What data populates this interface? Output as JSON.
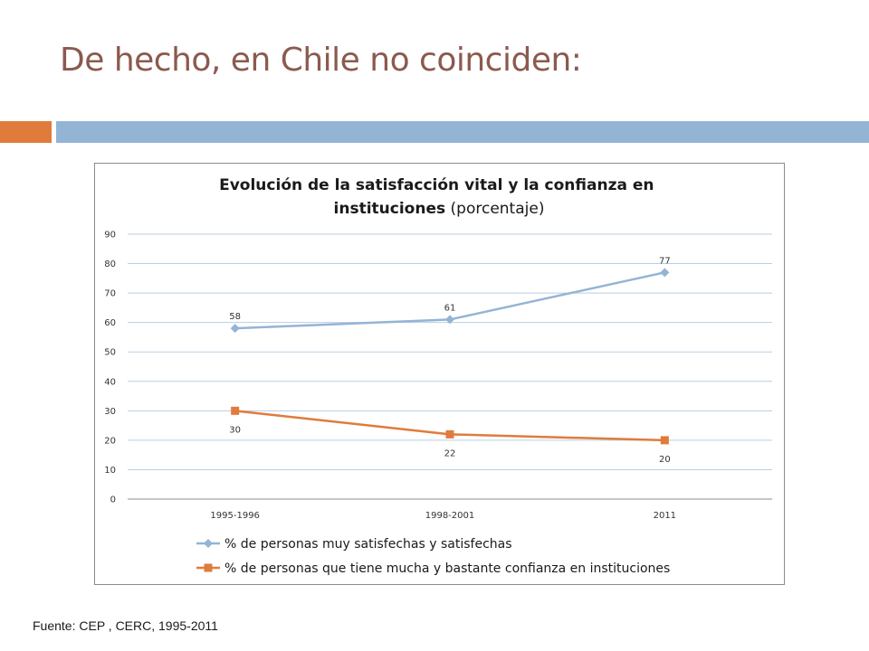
{
  "slide": {
    "title": "De hecho, en Chile no coinciden:",
    "source": "Fuente: CEP , CERC, 1995-2011"
  },
  "colors": {
    "title": "#8b5a4e",
    "accent_orange": "#e07b3c",
    "accent_blue": "#94b4d5",
    "series1": "#94b4d5",
    "series2": "#e07b3c",
    "grid": "#b8cfe3"
  },
  "chart_data": {
    "type": "line",
    "title_bold": "Evolución de la satisfacción vital y la confianza en instituciones",
    "title_normal": "(porcentaje)",
    "categories": [
      "1995-1996",
      "1998-2001",
      "2011"
    ],
    "ylim": [
      0,
      90
    ],
    "yticks": [
      0,
      10,
      20,
      30,
      40,
      50,
      60,
      70,
      80,
      90
    ],
    "grid": true,
    "legend_position": "bottom",
    "series": [
      {
        "name": "% de personas muy satisfechas y satisfechas",
        "values": [
          58,
          61,
          77
        ],
        "marker": "diamond",
        "labels_position": "above"
      },
      {
        "name": "% de personas que tiene mucha y bastante confianza en instituciones",
        "values": [
          30,
          22,
          20
        ],
        "marker": "square",
        "labels_position": "below"
      }
    ]
  }
}
